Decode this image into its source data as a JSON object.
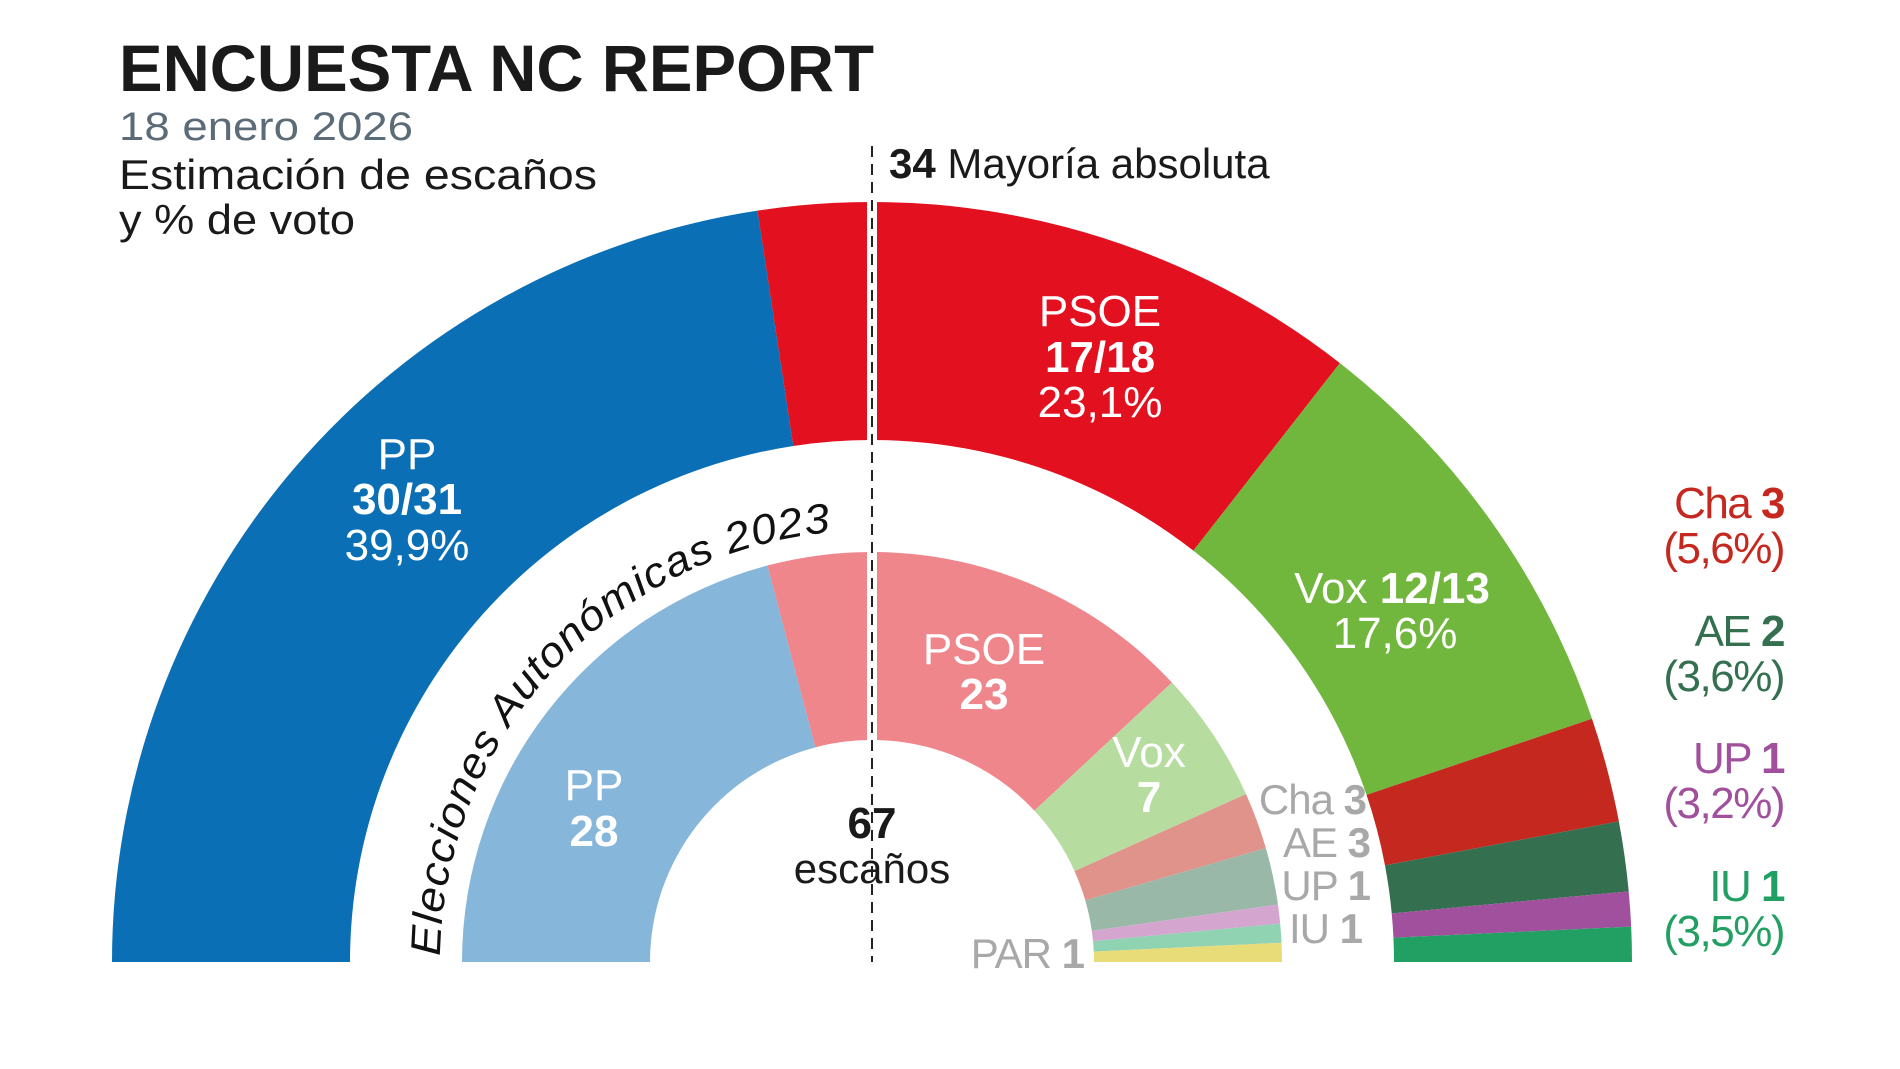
{
  "header": {
    "title": "ENCUESTA NC REPORT",
    "date": "18 enero 2026",
    "subtitle_line1": "Estimación de escaños",
    "subtitle_line2": "y % de voto"
  },
  "majority": {
    "seats": "34",
    "label": "Mayoría absoluta"
  },
  "center": {
    "total": "67",
    "unit": "escaños"
  },
  "chart_data": [
    {
      "type": "parliament-semicircle",
      "ring": "outer",
      "title": "Encuesta NC Report — estimación",
      "total_seats": 67,
      "majority": 34,
      "series": [
        {
          "party": "PP",
          "seats": "30/31",
          "seats_min": 30,
          "seats_max": 31,
          "vote_pct": "39,9%",
          "color": "#0a6fb4"
        },
        {
          "party": "PSOE",
          "seats": "17/18",
          "seats_min": 17,
          "seats_max": 18,
          "vote_pct": "23,1%",
          "color": "#e3101f"
        },
        {
          "party": "Vox",
          "seats": "12/13",
          "seats_min": 12,
          "seats_max": 13,
          "vote_pct": "17,6%",
          "color": "#72b73d"
        },
        {
          "party": "Cha",
          "seats": "3",
          "seats_min": 3,
          "seats_max": 3,
          "vote_pct": "(5,6%)",
          "color": "#c5281f"
        },
        {
          "party": "AE",
          "seats": "2",
          "seats_min": 2,
          "seats_max": 2,
          "vote_pct": "(3,6%)",
          "color": "#347050"
        },
        {
          "party": "UP",
          "seats": "1",
          "seats_min": 1,
          "seats_max": 1,
          "vote_pct": "(3,2%)",
          "color": "#a0509c"
        },
        {
          "party": "IU",
          "seats": "1",
          "seats_min": 1,
          "seats_max": 1,
          "vote_pct": "(3,5%)",
          "color": "#22a064"
        }
      ]
    },
    {
      "type": "parliament-semicircle",
      "ring": "inner",
      "title": "Elecciones Autonómicas 2023",
      "total_seats": 67,
      "series": [
        {
          "party": "PP",
          "seats": "28",
          "seats_min": 28,
          "seats_max": 28,
          "color": "#86b6da"
        },
        {
          "party": "PSOE",
          "seats": "23",
          "seats_min": 23,
          "seats_max": 23,
          "color": "#ef868b"
        },
        {
          "party": "Vox",
          "seats": "7",
          "seats_min": 7,
          "seats_max": 7,
          "color": "#b7dca0"
        },
        {
          "party": "Cha",
          "seats": "3",
          "seats_min": 3,
          "seats_max": 3,
          "color": "#e0938b"
        },
        {
          "party": "AE",
          "seats": "3",
          "seats_min": 3,
          "seats_max": 3,
          "color": "#9ab8a8"
        },
        {
          "party": "UP",
          "seats": "1",
          "seats_min": 1,
          "seats_max": 1,
          "color": "#d4a6cf"
        },
        {
          "party": "IU",
          "seats": "1",
          "seats_min": 1,
          "seats_max": 1,
          "color": "#90d3b2"
        },
        {
          "party": "PAR",
          "seats": "1",
          "seats_min": 1,
          "seats_max": 1,
          "color": "#e8dc78"
        }
      ]
    }
  ]
}
